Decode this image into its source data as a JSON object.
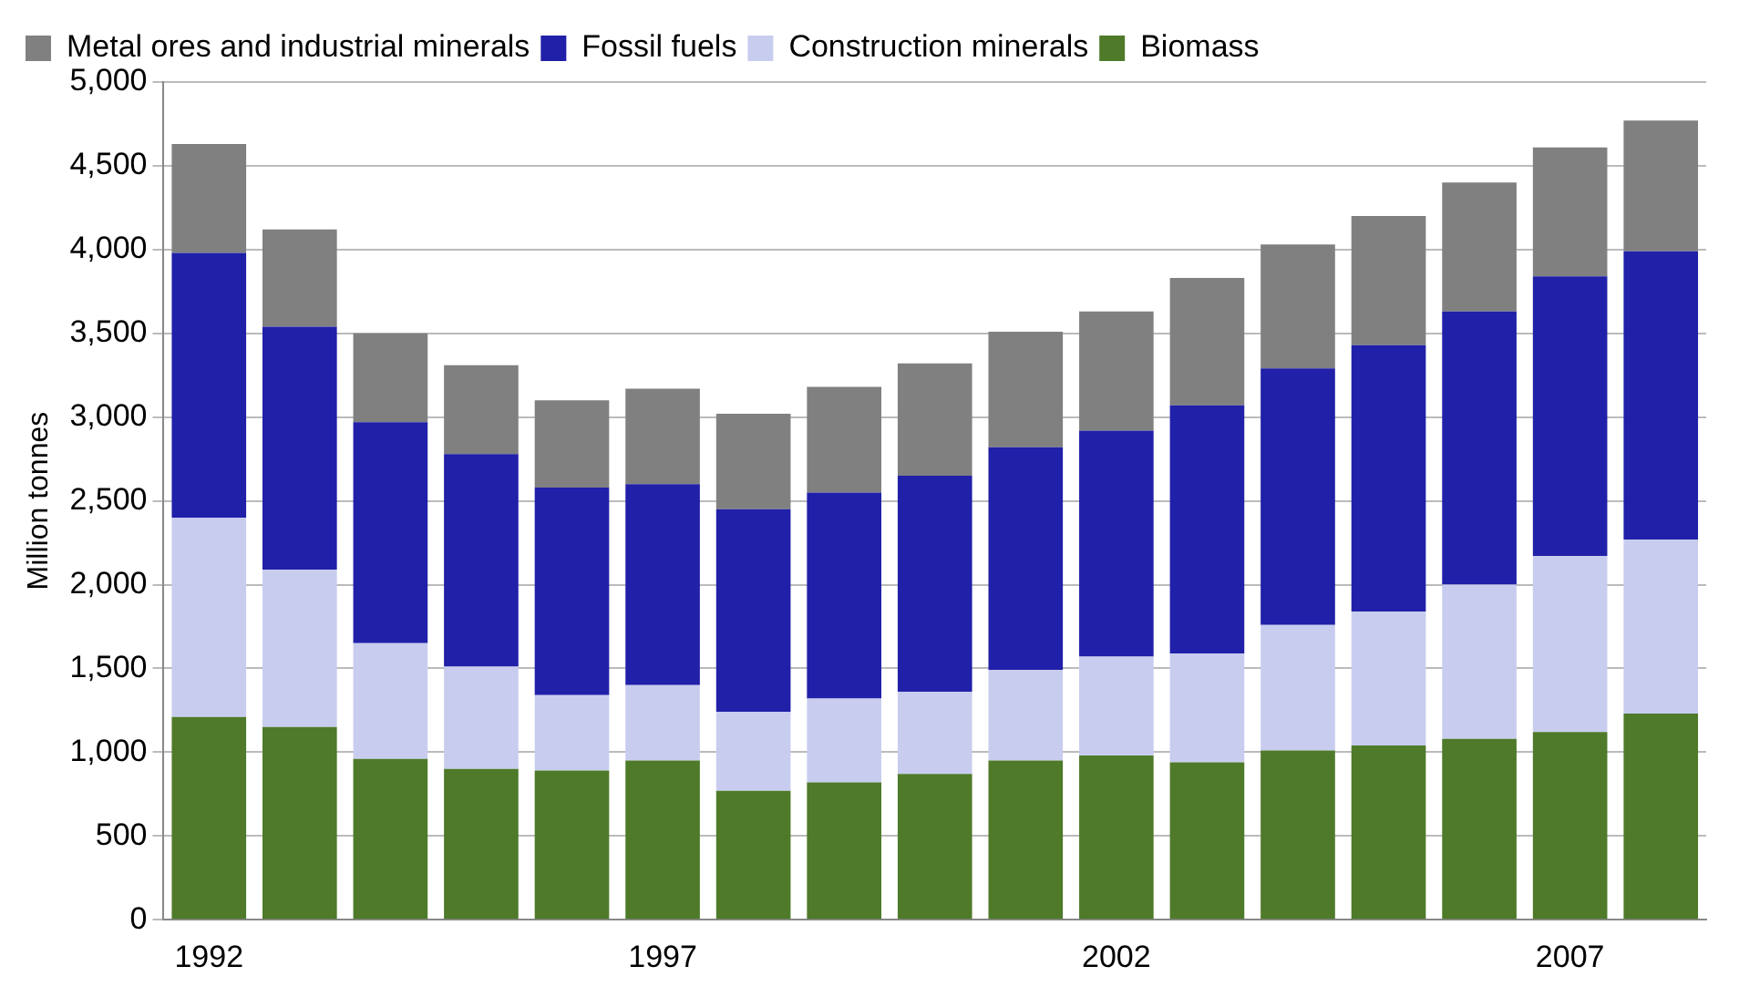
{
  "chart_data": {
    "type": "bar",
    "stacked": true,
    "ylabel": "Million tonnes",
    "categories": [
      "1992",
      null,
      null,
      null,
      null,
      "1997",
      null,
      null,
      null,
      null,
      "2002",
      null,
      null,
      null,
      null,
      "2007",
      null
    ],
    "series": [
      {
        "name": "Biomass",
        "color": "#4e7a2a",
        "values": [
          1210,
          1150,
          960,
          900,
          890,
          950,
          770,
          820,
          870,
          950,
          980,
          940,
          1010,
          1040,
          1080,
          1120,
          1230
        ]
      },
      {
        "name": "Construction minerals",
        "color": "#c8cdef",
        "values": [
          1190,
          940,
          690,
          610,
          450,
          450,
          470,
          500,
          490,
          540,
          590,
          650,
          750,
          800,
          920,
          1050,
          1040
        ]
      },
      {
        "name": "Fossil fuels",
        "color": "#2020a8",
        "values": [
          1580,
          1450,
          1320,
          1270,
          1240,
          1200,
          1210,
          1230,
          1290,
          1330,
          1350,
          1480,
          1530,
          1590,
          1630,
          1670,
          1720
        ]
      },
      {
        "name": "Metal ores and industrial minerals",
        "color": "#808080",
        "values": [
          650,
          580,
          530,
          530,
          520,
          570,
          570,
          630,
          670,
          690,
          710,
          760,
          740,
          770,
          770,
          770,
          780
        ]
      }
    ],
    "ylim": [
      0,
      5000
    ],
    "yticks": [
      0,
      500,
      {
        "value": 1000,
        "label": "1,000"
      },
      {
        "value": 1500,
        "label": "1,500"
      },
      {
        "value": 2000,
        "label": "2,000"
      },
      {
        "value": 2500,
        "label": "2,500"
      },
      {
        "value": 3000,
        "label": "3,000"
      },
      {
        "value": 3500,
        "label": "3,500"
      },
      {
        "value": 4000,
        "label": "4,000"
      },
      {
        "value": 4500,
        "label": "4,500"
      },
      {
        "value": 5000,
        "label": "5,000"
      }
    ],
    "grid": "y",
    "legend": "top left"
  }
}
